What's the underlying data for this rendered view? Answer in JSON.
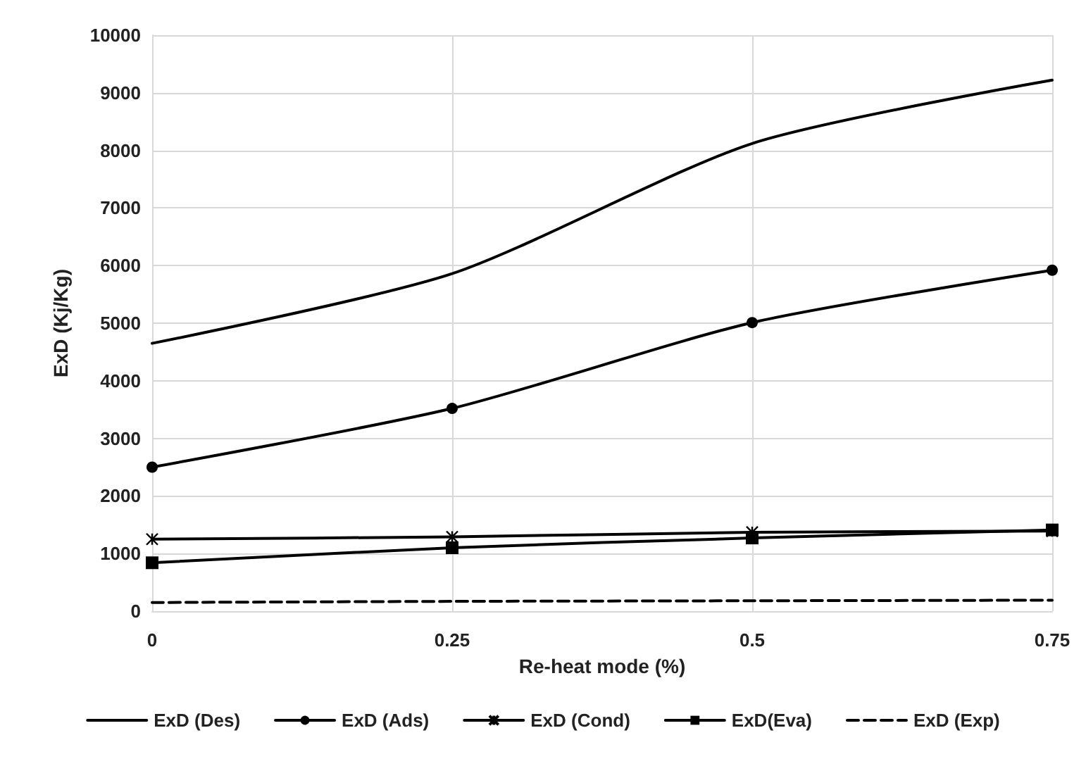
{
  "chart_data": {
    "type": "line",
    "xlabel": "Re-heat mode (%)",
    "ylabel": "ExD (Kj/Kg)",
    "x": [
      0,
      0.25,
      0.5,
      0.75
    ],
    "series": [
      {
        "name": "ExD (Des)",
        "color": "#000000",
        "marker": "none",
        "line_style": "solid",
        "values": [
          4650,
          5860,
          8120,
          9220
        ]
      },
      {
        "name": "ExD (Ads)",
        "color": "#000000",
        "marker": "circle",
        "line_style": "solid",
        "values": [
          2500,
          3520,
          5010,
          5920
        ]
      },
      {
        "name": "ExD (Cond)",
        "color": "#000000",
        "marker": "cross",
        "line_style": "solid",
        "values": [
          1250,
          1290,
          1370,
          1390
        ]
      },
      {
        "name": "ExD(Eva)",
        "color": "#000000",
        "marker": "square",
        "line_style": "solid",
        "values": [
          840,
          1100,
          1270,
          1410
        ]
      },
      {
        "name": "ExD (Exp)",
        "color": "#000000",
        "marker": "none",
        "line_style": "dashed",
        "values": [
          150,
          170,
          180,
          190
        ]
      }
    ],
    "xlim": [
      0,
      0.75
    ],
    "xticks": [
      0,
      0.25,
      0.5,
      0.75
    ],
    "ylim": [
      0,
      10000
    ],
    "yticks": [
      0,
      1000,
      2000,
      3000,
      4000,
      5000,
      6000,
      7000,
      8000,
      9000,
      10000
    ],
    "grid": true,
    "legend": "bottom"
  }
}
